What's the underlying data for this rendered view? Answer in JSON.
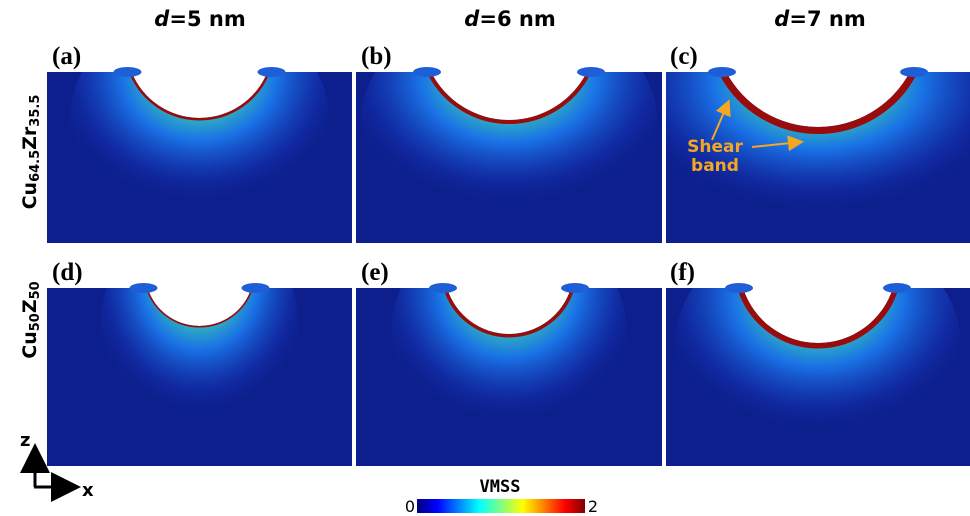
{
  "header": {
    "columns": [
      {
        "symbol": "d",
        "text": "=5 nm"
      },
      {
        "symbol": "d",
        "text": "=6 nm"
      },
      {
        "symbol": "d",
        "text": "=7 nm"
      }
    ]
  },
  "rows": [
    {
      "el1": "Cu",
      "sub1": "64.5",
      "el2": "Zr",
      "sub2": "35.5"
    },
    {
      "el1": "Cu",
      "sub1": "50",
      "el2": "Z",
      "sub2": "50"
    }
  ],
  "panels": [
    "(a)",
    "(b)",
    "(c)",
    "(d)",
    "(e)",
    "(f)"
  ],
  "annotation": {
    "lines": [
      "Shear",
      "band"
    ]
  },
  "colorbar": {
    "label": "VMSS",
    "ticks": [
      0,
      2
    ]
  },
  "axes": {
    "z": "z",
    "x": "x"
  }
}
